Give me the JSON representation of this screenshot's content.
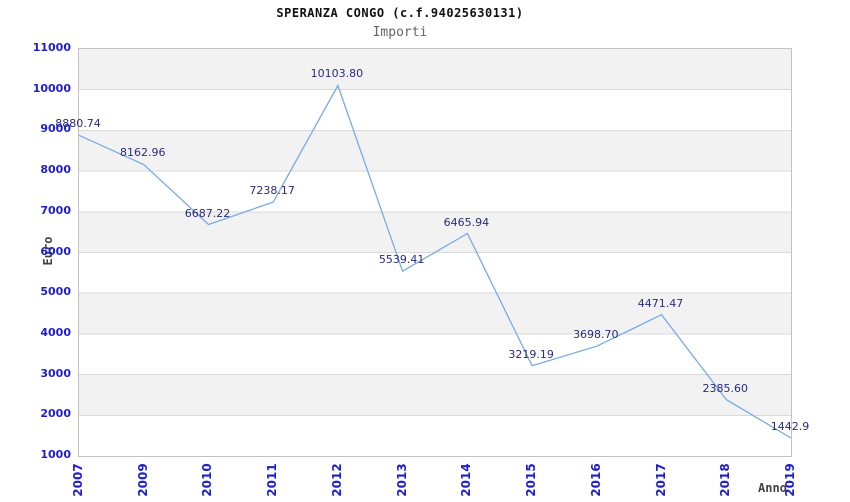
{
  "chart_data": {
    "type": "line",
    "title": "SPERANZA CONGO (c.f.94025630131)",
    "subtitle": "Importi",
    "xlabel": "Anno",
    "ylabel": "Euro",
    "categories": [
      "2007",
      "2009",
      "2010",
      "2011",
      "2012",
      "2013",
      "2014",
      "2015",
      "2016",
      "2017",
      "2018",
      "2019"
    ],
    "values": [
      8880.74,
      8162.96,
      6687.22,
      7238.17,
      10103.8,
      5539.41,
      6465.94,
      3219.19,
      3698.7,
      4471.47,
      2385.6,
      1442.9
    ],
    "point_labels": [
      "8880.74",
      "8162.96",
      "6687.22",
      "7238.17",
      "10103.80",
      "5539.41",
      "6465.94",
      "3219.19",
      "3698.70",
      "4471.47",
      "2385.60",
      "1442.9"
    ],
    "ylim": [
      1000,
      11000
    ],
    "ytick_step": 1000,
    "yticks": [
      11000,
      10000,
      9000,
      8000,
      7000,
      6000,
      5000,
      4000,
      3000,
      2000,
      1000
    ],
    "grid": true,
    "band_fill": "alternating-horizontal",
    "legend": "none"
  },
  "colors": {
    "line": "#79aae6",
    "tick_label": "#1d1dd0",
    "value_label": "#2b2b7e",
    "band": "#f2f2f2",
    "grid": "#dadada",
    "plot_border": "#c2c2c2",
    "title": "#111111",
    "subtitle": "#666666",
    "axis_title": "#444444",
    "background": "#ffffff"
  }
}
